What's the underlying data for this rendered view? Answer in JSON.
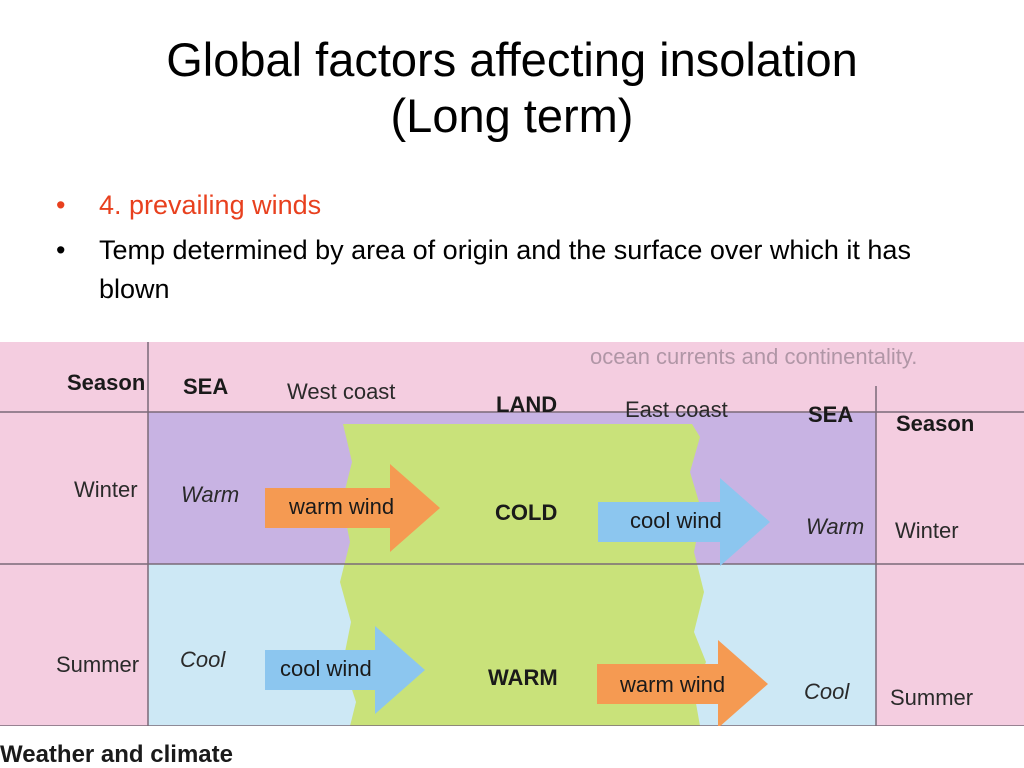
{
  "slide": {
    "title_line1": "Global factors affecting insolation",
    "title_line2": "(Long term)",
    "bullets": [
      {
        "marker": "•",
        "text": "4. prevailing winds",
        "color": "#e8401e"
      },
      {
        "marker": "•",
        "text": "Temp determined by area of origin and the surface over which it has blown",
        "color": "#000000"
      }
    ]
  },
  "diagram": {
    "header": {
      "season_left": "Season",
      "sea_left": "SEA",
      "west_coast": "West coast",
      "land": "LAND",
      "east_coast": "East coast",
      "sea_right": "SEA",
      "season_right": "Season"
    },
    "rows": [
      {
        "season_left": "Winter",
        "sea_left": "Warm",
        "arrow_left": "warm wind",
        "land": "COLD",
        "arrow_right": "cool wind",
        "sea_right": "Warm",
        "season_right": "Winter"
      },
      {
        "season_left": "Summer",
        "sea_left": "Cool",
        "arrow_left": "cool wind",
        "land": "WARM",
        "arrow_right": "warm wind",
        "sea_right": "Cool",
        "season_right": "Summer"
      }
    ],
    "top_scan_text": "ocean currents and continentality.",
    "footer": "Weather and climate",
    "colors": {
      "pink": "#f4cde0",
      "purple": "#c8b3e3",
      "light_blue": "#cde8f5",
      "land_green": "#c9e27a",
      "arrow_orange": "#f59a52",
      "arrow_blue": "#8cc6ef",
      "grid_line": "#7a6a78"
    }
  }
}
